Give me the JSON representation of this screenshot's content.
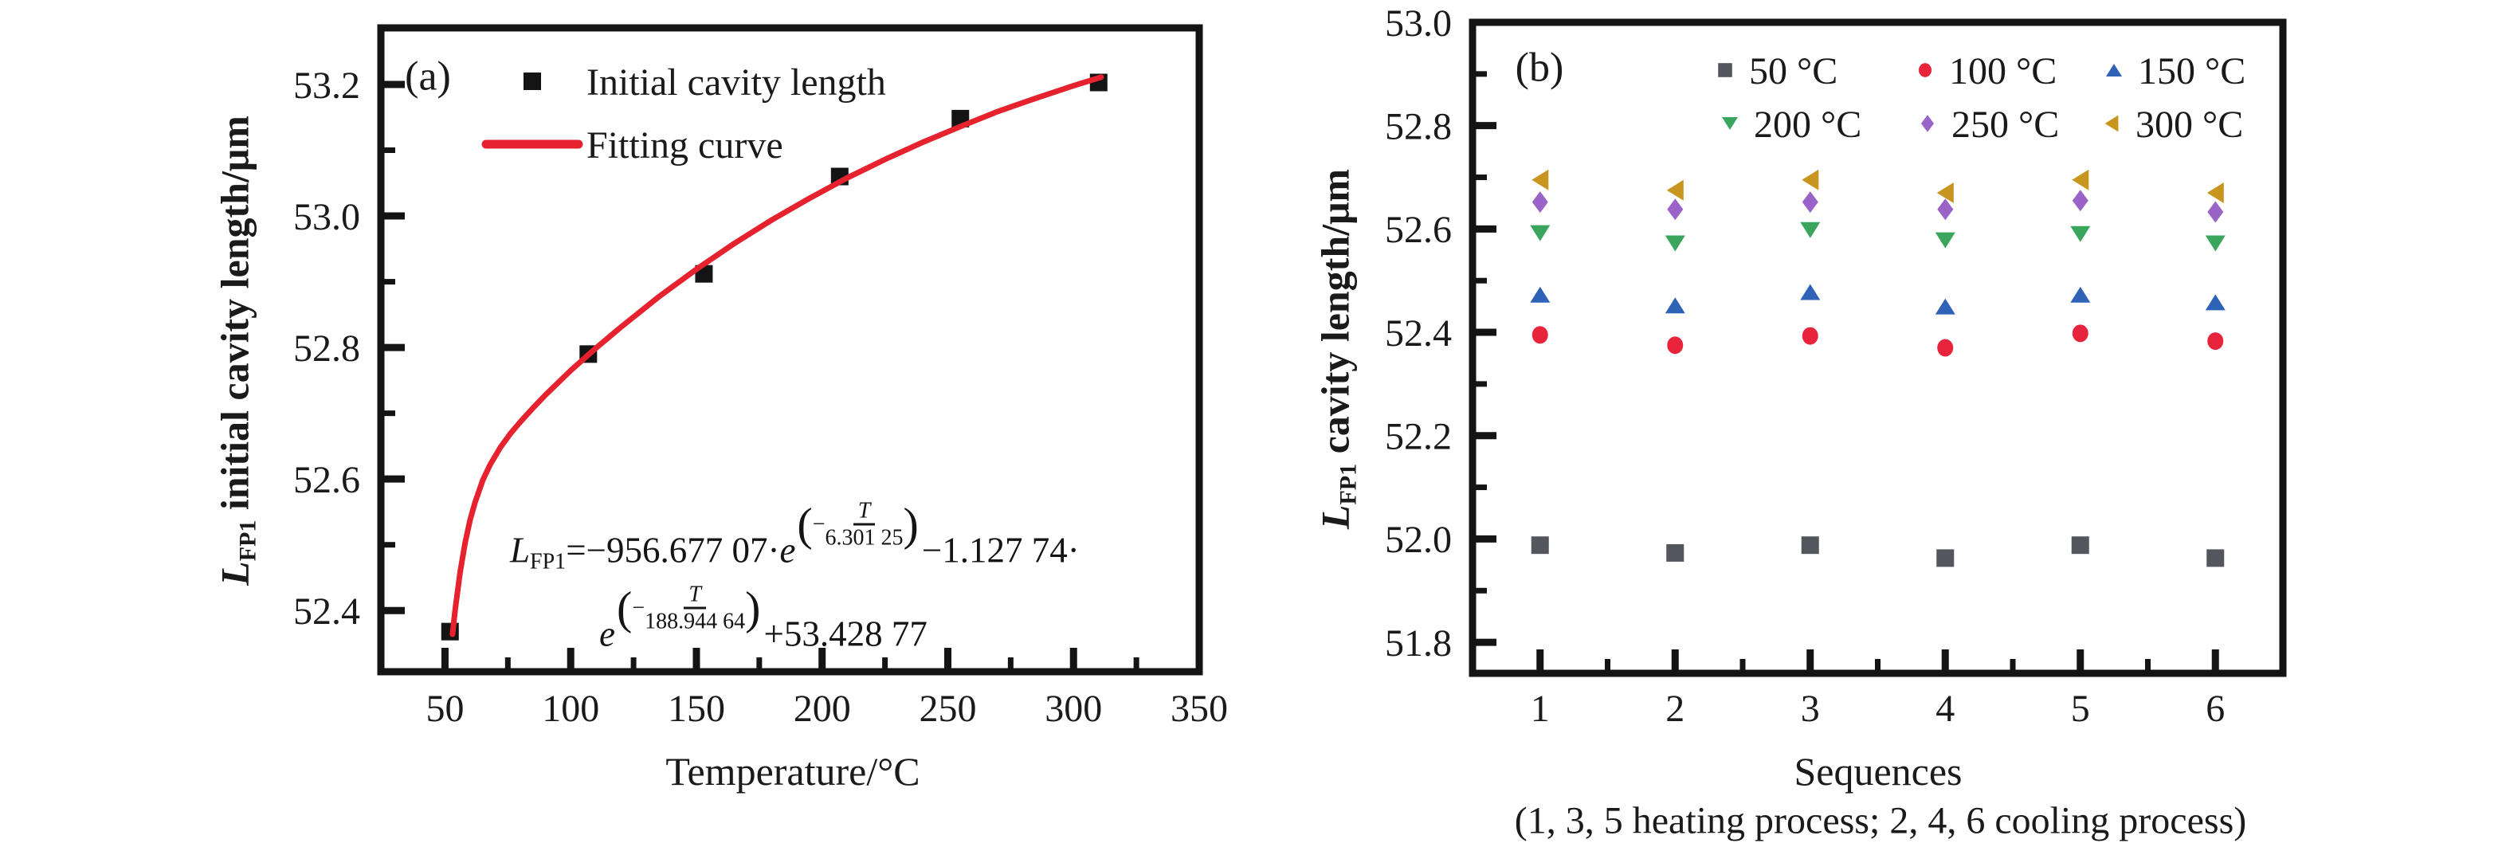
{
  "figure": {
    "ink": "#141414",
    "background": "#ffffff",
    "panel_a": {
      "label": "(a)",
      "x_axis_label": "Temperature/°C",
      "y_axis_label": {
        "symbol": "L",
        "subscript": "FP1",
        "rest": " initial cavity length/μm"
      },
      "legend": {
        "series1": "Initial cavity length",
        "series2": "Fitting curve"
      },
      "equation": {
        "symbol": "L",
        "subscript": "FP1",
        "segment1": "=−956.677 07·",
        "e": "e",
        "open_paren": "(",
        "minus": "−",
        "T": "T",
        "den1": "6.301 25",
        "close_paren": ")",
        "segment2": "−1.127 74·",
        "den2": "188.944 64",
        "segment3": "+53.428 77"
      }
    },
    "panel_b": {
      "label": "(b)",
      "x_axis_label": "Sequences",
      "x_axis_note": "(1, 3, 5 heating process; 2, 4, 6 cooling process)",
      "y_axis_label": {
        "symbol": "L",
        "subscript": "FP1",
        "rest": " cavity length/μm"
      }
    }
  },
  "chart_data": [
    {
      "type": "scatter",
      "panel": "a",
      "title": "(a)",
      "xlabel": "Temperature/°C",
      "ylabel": "L_FP1 initial cavity length/μm",
      "xlim": [
        24.5,
        350
      ],
      "ylim": [
        52.307,
        53.286
      ],
      "grid": false,
      "legend_position": "top-left-inside",
      "x_ticks": {
        "major": [
          50,
          100,
          150,
          200,
          250,
          300,
          350
        ],
        "minor": [
          75,
          125,
          175,
          225,
          275,
          325
        ],
        "labels": [
          "50",
          "100",
          "150",
          "200",
          "250",
          "300",
          "350"
        ]
      },
      "y_ticks": {
        "major": [
          52.4,
          52.6,
          52.8,
          53.0,
          53.2
        ],
        "minor": [
          52.5,
          52.7,
          52.9,
          53.1
        ],
        "labels": [
          "52.4",
          "52.6",
          "52.8",
          "53.0",
          "53.2"
        ]
      },
      "series": [
        {
          "name": "Initial cavity length",
          "type": "scatter",
          "marker": "square",
          "color": "#141414",
          "x": [
            52,
            107,
            153,
            207,
            255,
            310
          ],
          "y": [
            52.368,
            52.79,
            52.912,
            53.06,
            53.148,
            53.203
          ]
        },
        {
          "name": "Fitting curve",
          "type": "line",
          "color": "#e6222f",
          "points": [
            [
              53,
              52.364
            ],
            [
              54,
              52.4
            ],
            [
              56,
              52.458
            ],
            [
              58,
              52.503
            ],
            [
              60,
              52.538
            ],
            [
              62,
              52.565
            ],
            [
              65,
              52.598
            ],
            [
              68,
              52.622
            ],
            [
              72,
              52.648
            ],
            [
              76,
              52.669
            ],
            [
              80,
              52.687
            ],
            [
              85,
              52.708
            ],
            [
              90,
              52.728
            ],
            [
              100,
              52.765
            ],
            [
              110,
              52.799
            ],
            [
              120,
              52.831
            ],
            [
              135,
              52.877
            ],
            [
              150,
              52.919
            ],
            [
              165,
              52.958
            ],
            [
              180,
              52.994
            ],
            [
              195,
              53.027
            ],
            [
              210,
              53.058
            ],
            [
              225,
              53.086
            ],
            [
              240,
              53.112
            ],
            [
              255,
              53.136
            ],
            [
              270,
              53.159
            ],
            [
              285,
              53.179
            ],
            [
              300,
              53.198
            ],
            [
              311,
              53.211
            ]
          ]
        }
      ],
      "equation_text": "L_FP1=−956.677 07·e^(−T/6.301 25)−1.127 74·e^(−T/188.944 64)+53.428 77"
    },
    {
      "type": "scatter",
      "panel": "b",
      "title": "(b)",
      "xlabel": "Sequences",
      "xlabel_note": "(1, 3, 5 heating process; 2, 4, 6 cooling process)",
      "ylabel": "L_FP1 cavity length/μm",
      "xlim": [
        0.5,
        6.5
      ],
      "ylim": [
        51.74,
        53.0
      ],
      "grid": false,
      "legend_position": "top-right-inside",
      "categories": [
        1,
        2,
        3,
        4,
        5,
        6
      ],
      "x_ticks": {
        "major": [
          1,
          2,
          3,
          4,
          5,
          6
        ],
        "minor": [
          1.5,
          2.5,
          3.5,
          4.5,
          5.5
        ],
        "labels": [
          "1",
          "2",
          "3",
          "4",
          "5",
          "6"
        ]
      },
      "y_ticks": {
        "major": [
          51.8,
          52.0,
          52.2,
          52.4,
          52.6,
          52.8,
          53.0
        ],
        "minor": [
          51.9,
          52.1,
          52.3,
          52.5,
          52.7,
          52.9
        ],
        "labels": [
          "51.8",
          "52.0",
          "52.2",
          "52.4",
          "52.6",
          "52.8",
          "53.0"
        ]
      },
      "series": [
        {
          "name": "50 °C",
          "marker": "square",
          "color": "#54565e",
          "values": [
            51.988,
            51.973,
            51.988,
            51.963,
            51.988,
            51.963
          ]
        },
        {
          "name": "100 °C",
          "marker": "circle",
          "color": "#e8243c",
          "values": [
            52.395,
            52.375,
            52.393,
            52.37,
            52.398,
            52.383
          ]
        },
        {
          "name": "150 °C",
          "marker": "triangle-up",
          "color": "#2f63b7",
          "values": [
            52.473,
            52.452,
            52.478,
            52.45,
            52.473,
            52.458
          ]
        },
        {
          "name": "200 °C",
          "marker": "triangle-down",
          "color": "#3aa55c",
          "values": [
            52.592,
            52.572,
            52.598,
            52.578,
            52.59,
            52.572
          ]
        },
        {
          "name": "250 °C",
          "marker": "diamond",
          "color": "#9a63c8",
          "values": [
            52.652,
            52.638,
            52.652,
            52.638,
            52.655,
            52.633
          ]
        },
        {
          "name": "300 °C",
          "marker": "triangle-left",
          "color": "#c8951e",
          "values": [
            52.695,
            52.675,
            52.695,
            52.67,
            52.695,
            52.67
          ]
        }
      ]
    }
  ]
}
